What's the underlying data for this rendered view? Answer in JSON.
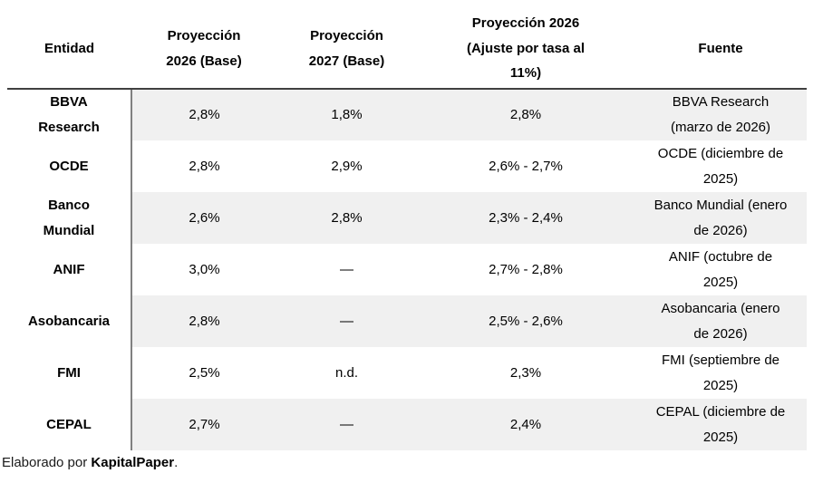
{
  "table": {
    "columns": [
      "Entidad",
      "Proyección 2026 (Base)",
      "Proyección 2027 (Base)",
      "Proyección 2026 (Ajuste por tasa al 11%)",
      "Fuente"
    ],
    "rows": [
      {
        "entidad": "BBVA Research",
        "p2026": "2,8%",
        "p2027": "1,8%",
        "ajuste": "2,8%",
        "fuente": "BBVA Research (marzo de 2026)"
      },
      {
        "entidad": "OCDE",
        "p2026": "2,8%",
        "p2027": "2,9%",
        "ajuste": "2,6% - 2,7%",
        "fuente": "OCDE (diciembre de 2025)"
      },
      {
        "entidad": "Banco Mundial",
        "p2026": "2,6%",
        "p2027": "2,8%",
        "ajuste": "2,3% - 2,4%",
        "fuente": "Banco Mundial (enero de 2026)"
      },
      {
        "entidad": "ANIF",
        "p2026": "3,0%",
        "p2027": "—",
        "ajuste": "2,7% - 2,8%",
        "fuente": "ANIF (octubre de 2025)"
      },
      {
        "entidad": "Asobancaria",
        "p2026": "2,8%",
        "p2027": "—",
        "ajuste": "2,5% - 2,6%",
        "fuente": "Asobancaria (enero de 2026)"
      },
      {
        "entidad": "FMI",
        "p2026": "2,5%",
        "p2027": "n.d.",
        "ajuste": "2,3%",
        "fuente": "FMI (septiembre de 2025)"
      },
      {
        "entidad": "CEPAL",
        "p2026": "2,7%",
        "p2027": "—",
        "ajuste": "2,4%",
        "fuente": "CEPAL (diciembre de 2025)"
      }
    ]
  },
  "footer": {
    "prefix": "Elaborado por ",
    "brand": "KapitalPaper",
    "suffix": "."
  },
  "colors": {
    "stripe": "#f0f0f0",
    "header_rule": "#404040",
    "column_rule": "#808080"
  },
  "chart_data": {
    "type": "table",
    "title": "",
    "columns": [
      "Entidad",
      "Proyección 2026 (Base)",
      "Proyección 2027 (Base)",
      "Proyección 2026 (Ajuste por tasa al 11%)",
      "Fuente"
    ],
    "rows": [
      [
        "BBVA Research",
        "2,8%",
        "1,8%",
        "2,8%",
        "BBVA Research (marzo de 2026)"
      ],
      [
        "OCDE",
        "2,8%",
        "2,9%",
        "2,6% - 2,7%",
        "OCDE (diciembre de 2025)"
      ],
      [
        "Banco Mundial",
        "2,6%",
        "2,8%",
        "2,3% - 2,4%",
        "Banco Mundial (enero de 2026)"
      ],
      [
        "ANIF",
        "3,0%",
        "—",
        "2,7% - 2,8%",
        "ANIF (octubre de 2025)"
      ],
      [
        "Asobancaria",
        "2,8%",
        "—",
        "2,5% - 2,6%",
        "Asobancaria (enero de 2026)"
      ],
      [
        "FMI",
        "2,5%",
        "n.d.",
        "2,3%",
        "FMI (septiembre de 2025)"
      ],
      [
        "CEPAL",
        "2,7%",
        "—",
        "2,4%",
        "CEPAL (diciembre de 2025)"
      ]
    ]
  }
}
